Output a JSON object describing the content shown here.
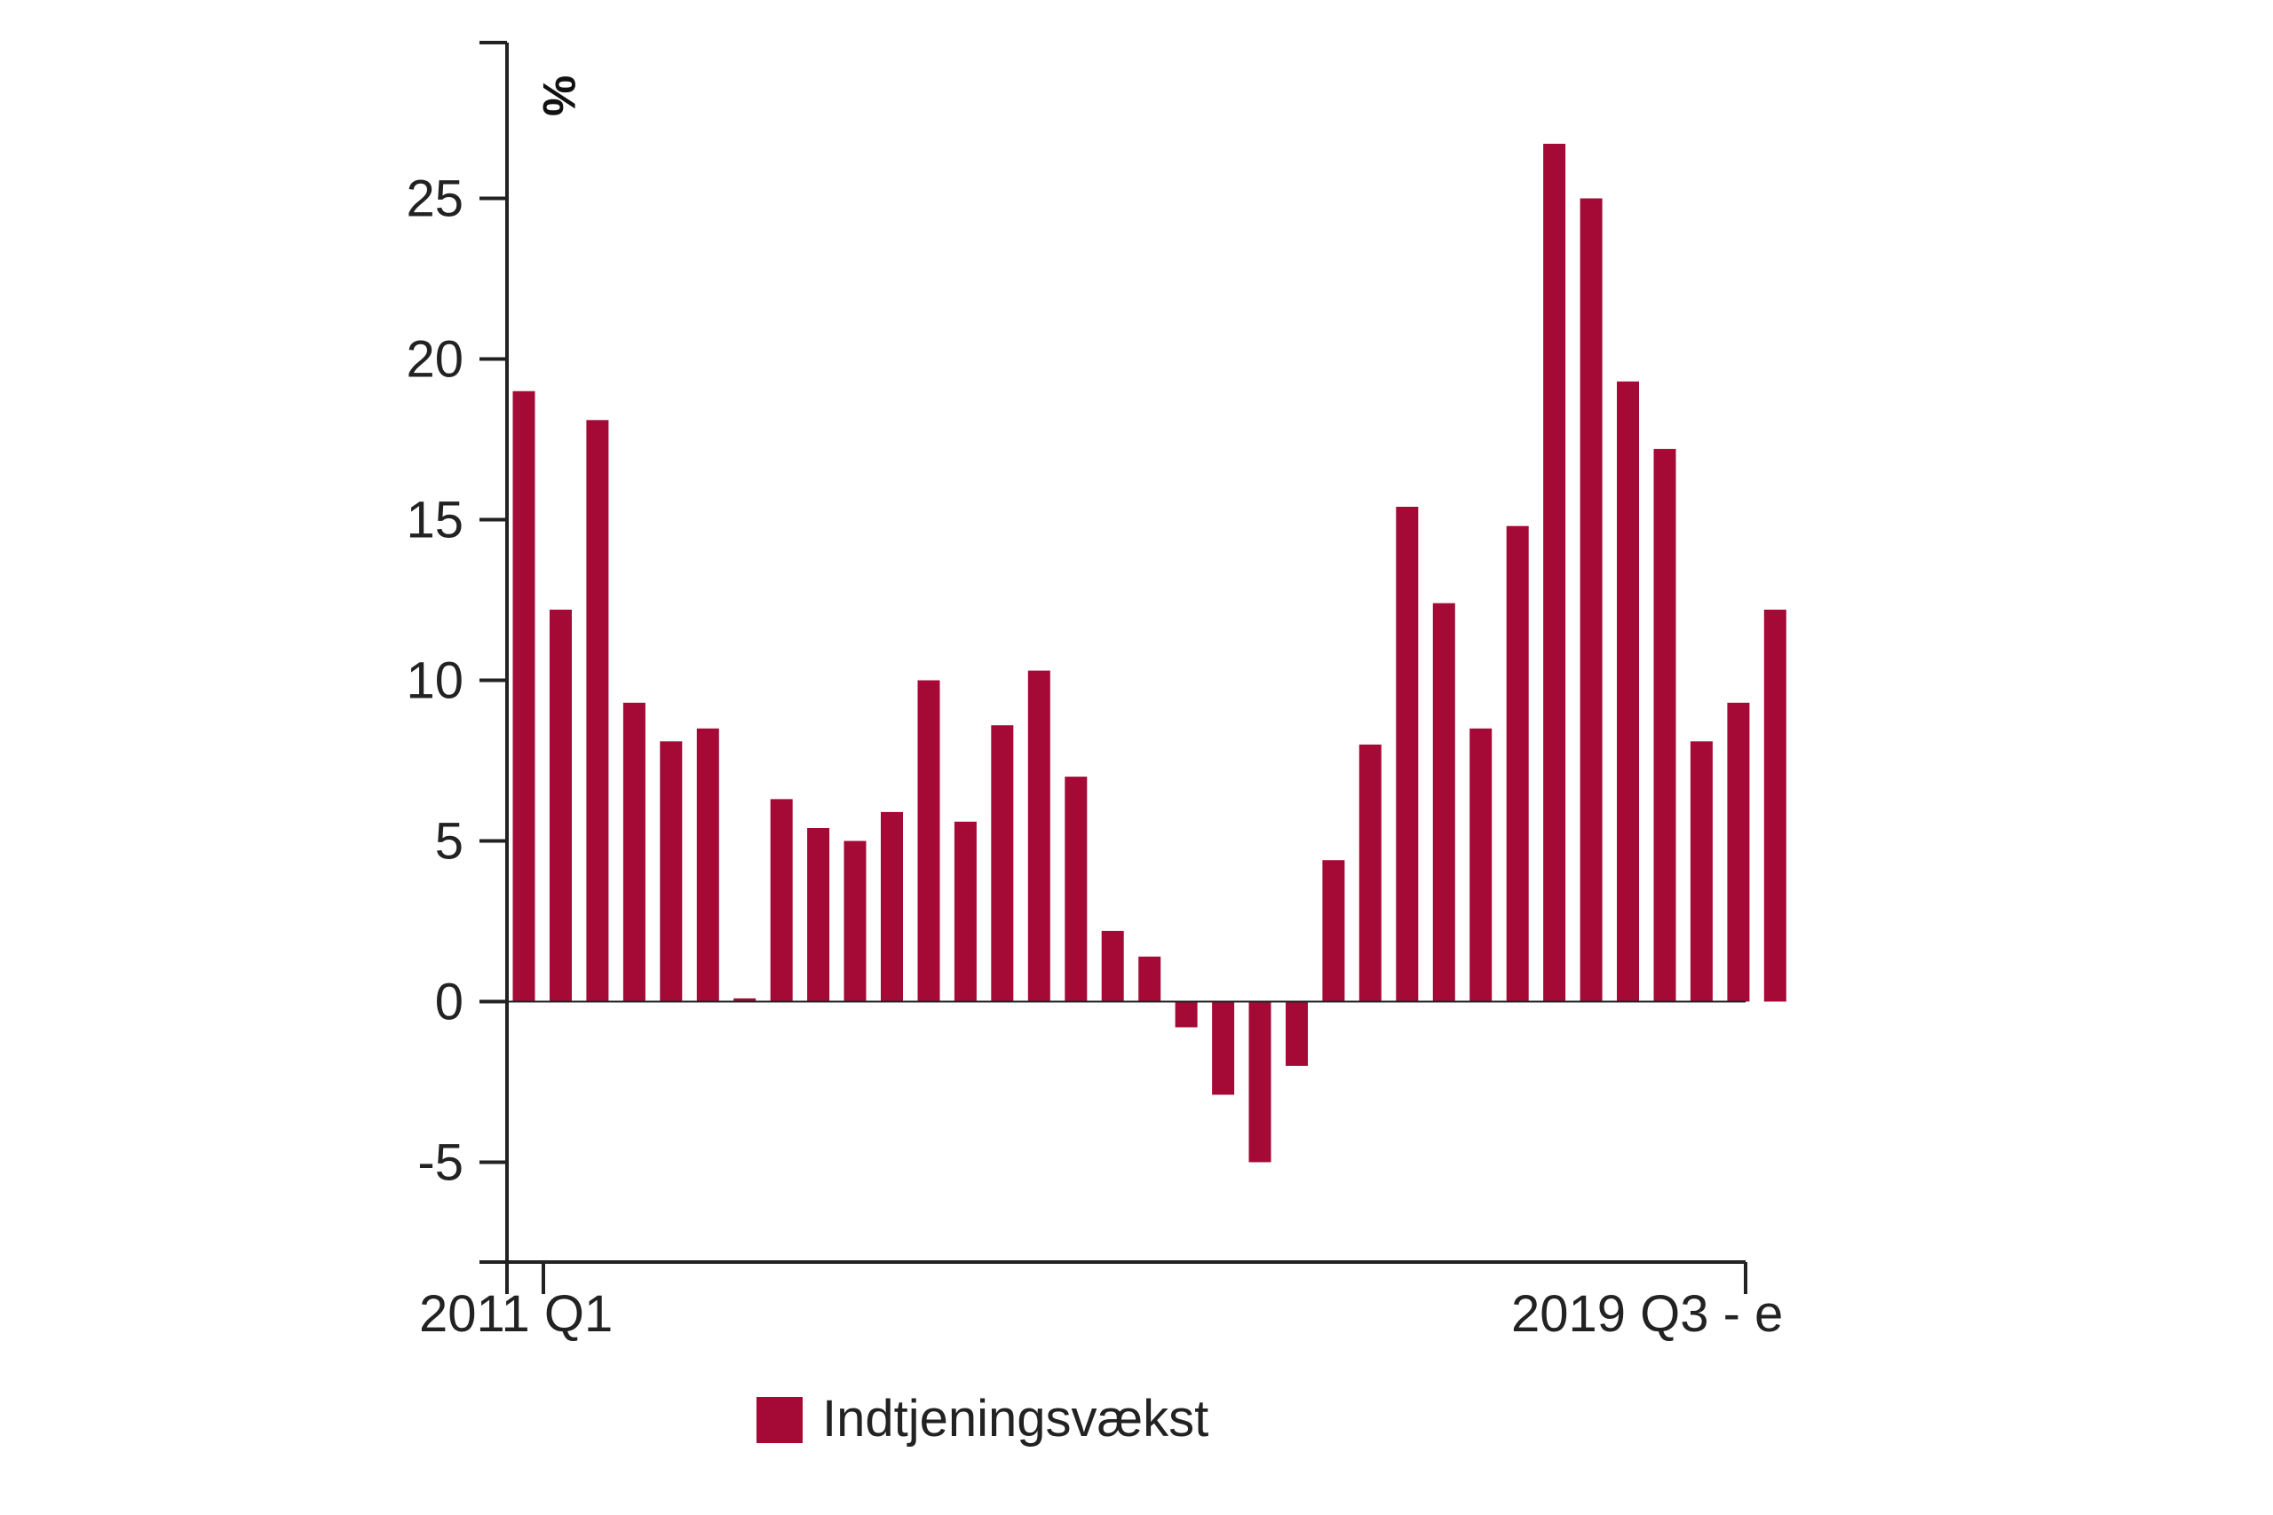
{
  "chart_data": {
    "type": "bar",
    "ylabel": "%",
    "ylim": [
      -8,
      30
    ],
    "yticks": [
      -5,
      0,
      5,
      10,
      15,
      20,
      25
    ],
    "x_first_label": "2011 Q1",
    "x_last_label": "2019 Q3 - e",
    "series": [
      {
        "name": "Indtjeningsvækst",
        "color": "#a50a36",
        "values": [
          19.0,
          12.2,
          18.1,
          9.3,
          8.1,
          8.5,
          0.1,
          6.3,
          5.4,
          5.0,
          5.9,
          10.0,
          5.6,
          8.6,
          10.3,
          7.0,
          2.2,
          1.4,
          -0.8,
          -2.9,
          -5.0,
          -2.0,
          4.4,
          8.0,
          15.4,
          12.4,
          8.5,
          14.8,
          26.7,
          25.0,
          19.3,
          17.2,
          8.1,
          9.3,
          12.2
        ]
      }
    ]
  },
  "legend": {
    "label": "Indtjeningsvækst",
    "color": "#a50a36"
  }
}
